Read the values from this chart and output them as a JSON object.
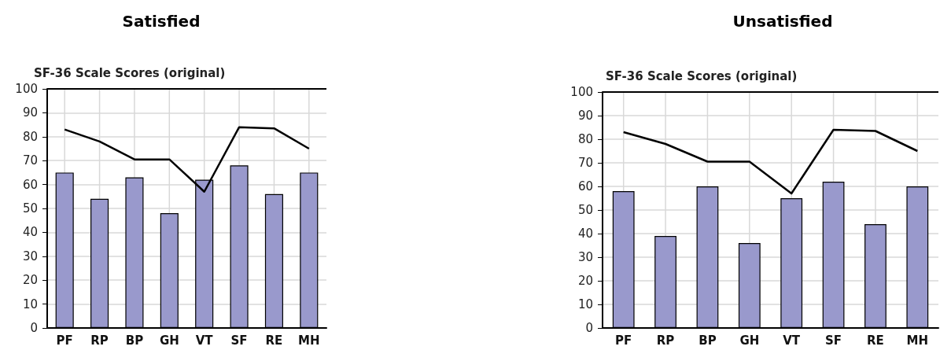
{
  "chart_data": [
    {
      "type": "bar",
      "title": "Satisfied",
      "subtitle": "SF-36 Scale Scores (original)",
      "categories": [
        "PF",
        "RP",
        "BP",
        "GH",
        "VT",
        "SF",
        "RE",
        "MH"
      ],
      "series": [
        {
          "color": "#9999cc",
          "values": [
            65,
            54,
            63,
            48,
            62,
            68,
            56,
            65
          ]
        },
        {
          "type": "line",
          "color": "#000000",
          "values": [
            83,
            78,
            70.5,
            70.5,
            57,
            84,
            83.5,
            75
          ]
        }
      ],
      "ylim": [
        0,
        100
      ],
      "yticks": [
        0,
        10,
        20,
        30,
        40,
        50,
        60,
        70,
        80,
        90,
        100
      ],
      "grid": true,
      "marker": "none"
    },
    {
      "type": "bar",
      "title": "Unsatisfied",
      "subtitle": "SF-36 Scale Scores (original)",
      "categories": [
        "PF",
        "RP",
        "BP",
        "GH",
        "VT",
        "SF",
        "RE",
        "MH"
      ],
      "series": [
        {
          "color": "#9999cc",
          "values": [
            58,
            39,
            60,
            36,
            55,
            62,
            44,
            60
          ]
        },
        {
          "type": "line",
          "color": "#000000",
          "values": [
            83,
            78,
            70.5,
            70.5,
            57,
            84,
            83.5,
            75
          ]
        }
      ],
      "ylim": [
        0,
        100
      ],
      "yticks": [
        0,
        10,
        20,
        30,
        40,
        50,
        60,
        70,
        80,
        90,
        100
      ],
      "grid": true,
      "marker": "none"
    }
  ]
}
